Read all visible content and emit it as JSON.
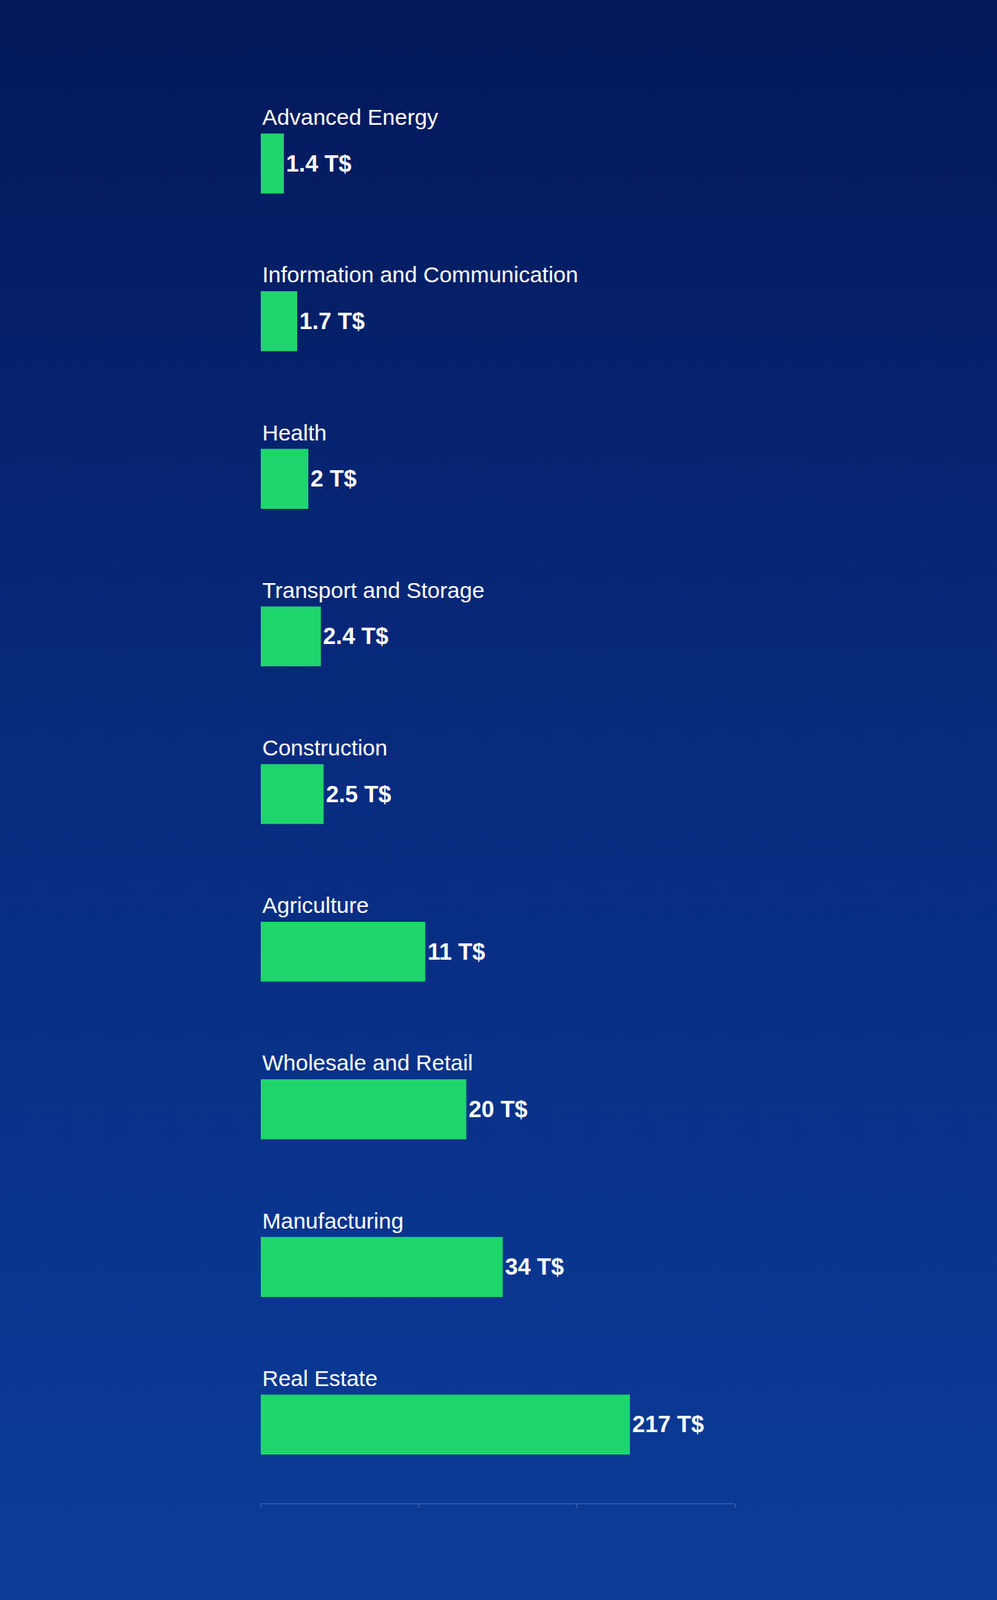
{
  "chart_data": {
    "type": "bar",
    "orientation": "horizontal",
    "categories": [
      "Advanced Energy",
      "Information and Communication",
      "Health",
      "Transport and Storage",
      "Construction",
      "Agriculture",
      "Wholesale and Retail",
      "Manufacturing",
      "Real Estate"
    ],
    "values": [
      1.4,
      1.7,
      2,
      2.4,
      2.5,
      11,
      20,
      34,
      217
    ],
    "value_labels": [
      "1.4 T$",
      "1.7 T$",
      "2 T$",
      "2.4 T$",
      "2.5 T$",
      "11 T$",
      "20 T$",
      "34 T$",
      "217 T$"
    ],
    "data_labels": true,
    "color": "#1ed66c",
    "log": "x",
    "xlim": [
      1,
      1000
    ],
    "xticks": [
      1,
      10,
      100,
      1000
    ],
    "tick_labels": false,
    "grid": false
  }
}
